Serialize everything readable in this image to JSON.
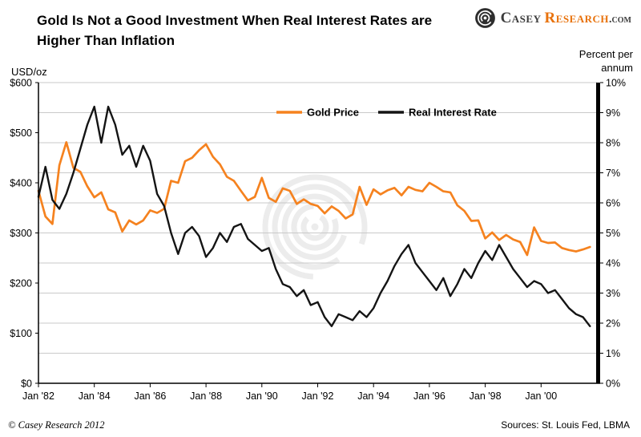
{
  "page": {
    "title_line1": "Gold Is Not a Good Investment When Real Interest Rates are",
    "title_line2": "Higher Than Inflation",
    "logo": {
      "part1": "Casey",
      "part2": "Research",
      "part3": ".com"
    },
    "footer_left": "© Casey Research 2012",
    "footer_right": "Sources: St. Louis Fed, LBMA"
  },
  "chart_data": {
    "type": "line",
    "title": "Gold Is Not a Good Investment When Real Interest Rates are Higher Than Inflation",
    "grid_color": "#c9c9c9",
    "left_axis": {
      "label": "USD/oz",
      "range": [
        0,
        600
      ],
      "tick_values": [
        0,
        100,
        200,
        300,
        400,
        500,
        600
      ],
      "ticks": [
        "$0",
        "$100",
        "$200",
        "$300",
        "$400",
        "$500",
        "$600"
      ]
    },
    "right_axis": {
      "label": "Percent per annum",
      "range": [
        0,
        10
      ],
      "tick_values": [
        0,
        1,
        2,
        3,
        4,
        5,
        6,
        7,
        8,
        9,
        10
      ],
      "ticks": [
        "0%",
        "1%",
        "2%",
        "3%",
        "4%",
        "5%",
        "6%",
        "7%",
        "8%",
        "9%",
        "10%"
      ]
    },
    "x_axis": {
      "range": [
        1982,
        2002
      ],
      "tick_values": [
        1982,
        1984,
        1986,
        1988,
        1990,
        1992,
        1994,
        1996,
        1998,
        2000
      ],
      "ticks": [
        "Jan '82",
        "Jan '84",
        "Jan '86",
        "Jan '88",
        "Jan '90",
        "Jan '92",
        "Jan '94",
        "Jan '96",
        "Jan '98",
        "Jan '00"
      ]
    },
    "legend": [
      {
        "name": "Gold Price",
        "color": "#f5821f"
      },
      {
        "name": "Real Interest Rate",
        "color": "#141414"
      }
    ],
    "series": [
      {
        "id": "gold-price",
        "name": "Gold Price",
        "axis": "left",
        "color": "#f5821f",
        "width": 2.7,
        "x_start": 1982.0,
        "x_step": 0.25,
        "values": [
          384,
          333,
          318,
          435,
          481,
          430,
          422,
          393,
          371,
          381,
          347,
          341,
          303,
          325,
          317,
          325,
          345,
          340,
          348,
          404,
          400,
          443,
          450,
          465,
          477,
          452,
          437,
          412,
          404,
          384,
          365,
          372,
          410,
          370,
          362,
          389,
          384,
          358,
          367,
          358,
          354,
          339,
          353,
          344,
          329,
          337,
          392,
          356,
          387,
          377,
          385,
          390,
          375,
          392,
          386,
          383,
          400,
          392,
          383,
          381,
          355,
          344,
          324,
          325,
          289,
          301,
          286,
          296,
          287,
          282,
          256,
          311,
          284,
          280,
          281,
          270,
          266,
          263,
          267,
          272
        ]
      },
      {
        "id": "real-interest-rate",
        "name": "Real Interest Rate",
        "axis": "right",
        "color": "#141414",
        "width": 2.4,
        "x_start": 1982.0,
        "x_step": 0.25,
        "values": [
          6.2,
          7.2,
          6.1,
          5.8,
          6.3,
          7.0,
          7.8,
          8.6,
          9.2,
          8.0,
          9.2,
          8.6,
          7.6,
          7.9,
          7.2,
          7.9,
          7.4,
          6.3,
          5.9,
          5.0,
          4.3,
          5.0,
          5.2,
          4.9,
          4.2,
          4.5,
          5.0,
          4.7,
          5.2,
          5.3,
          4.8,
          4.6,
          4.4,
          4.5,
          3.8,
          3.3,
          3.2,
          2.9,
          3.1,
          2.6,
          2.7,
          2.2,
          1.9,
          2.3,
          2.2,
          2.1,
          2.4,
          2.2,
          2.5,
          3.0,
          3.4,
          3.9,
          4.3,
          4.6,
          4.0,
          3.7,
          3.4,
          3.1,
          3.5,
          2.9,
          3.3,
          3.8,
          3.5,
          4.0,
          4.4,
          4.1,
          4.6,
          4.2,
          3.8,
          3.5,
          3.2,
          3.4,
          3.3,
          3.0,
          3.1,
          2.8,
          2.5,
          2.3,
          2.2,
          1.9
        ]
      }
    ]
  }
}
